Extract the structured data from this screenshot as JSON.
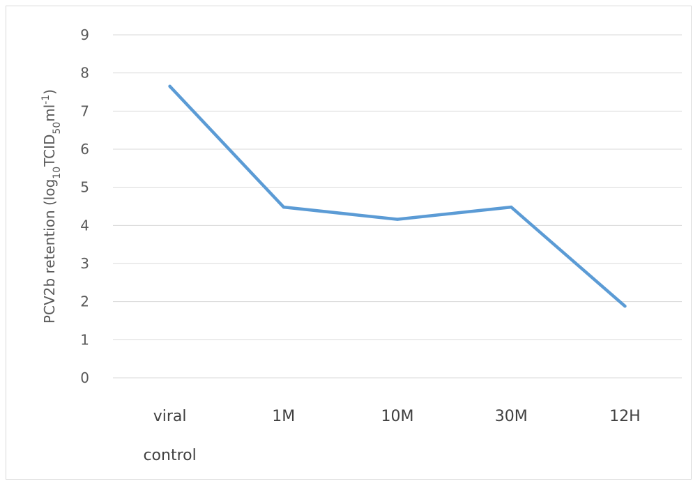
{
  "chart_data": {
    "type": "line",
    "categories": [
      "viral control",
      "1M",
      "10M",
      "30M",
      "12H"
    ],
    "category_lines": [
      [
        "viral",
        "control"
      ],
      [
        "1M"
      ],
      [
        "10M"
      ],
      [
        "30M"
      ],
      [
        "12H"
      ]
    ],
    "series": [
      {
        "values": [
          7.65,
          4.48,
          4.16,
          4.48,
          1.88
        ]
      }
    ],
    "ylabel": {
      "prefix": "PCV2b retention (log",
      "sub1": "10",
      "mid": "TCID",
      "sub2": "50",
      "mid2": "ml",
      "sup": "-1",
      "suffix": ")"
    },
    "ylim": [
      0,
      9
    ],
    "yticks": [
      "0",
      "1",
      "2",
      "3",
      "4",
      "5",
      "6",
      "7",
      "8",
      "9"
    ],
    "grid": true,
    "line_color": "#5b9bd5"
  }
}
